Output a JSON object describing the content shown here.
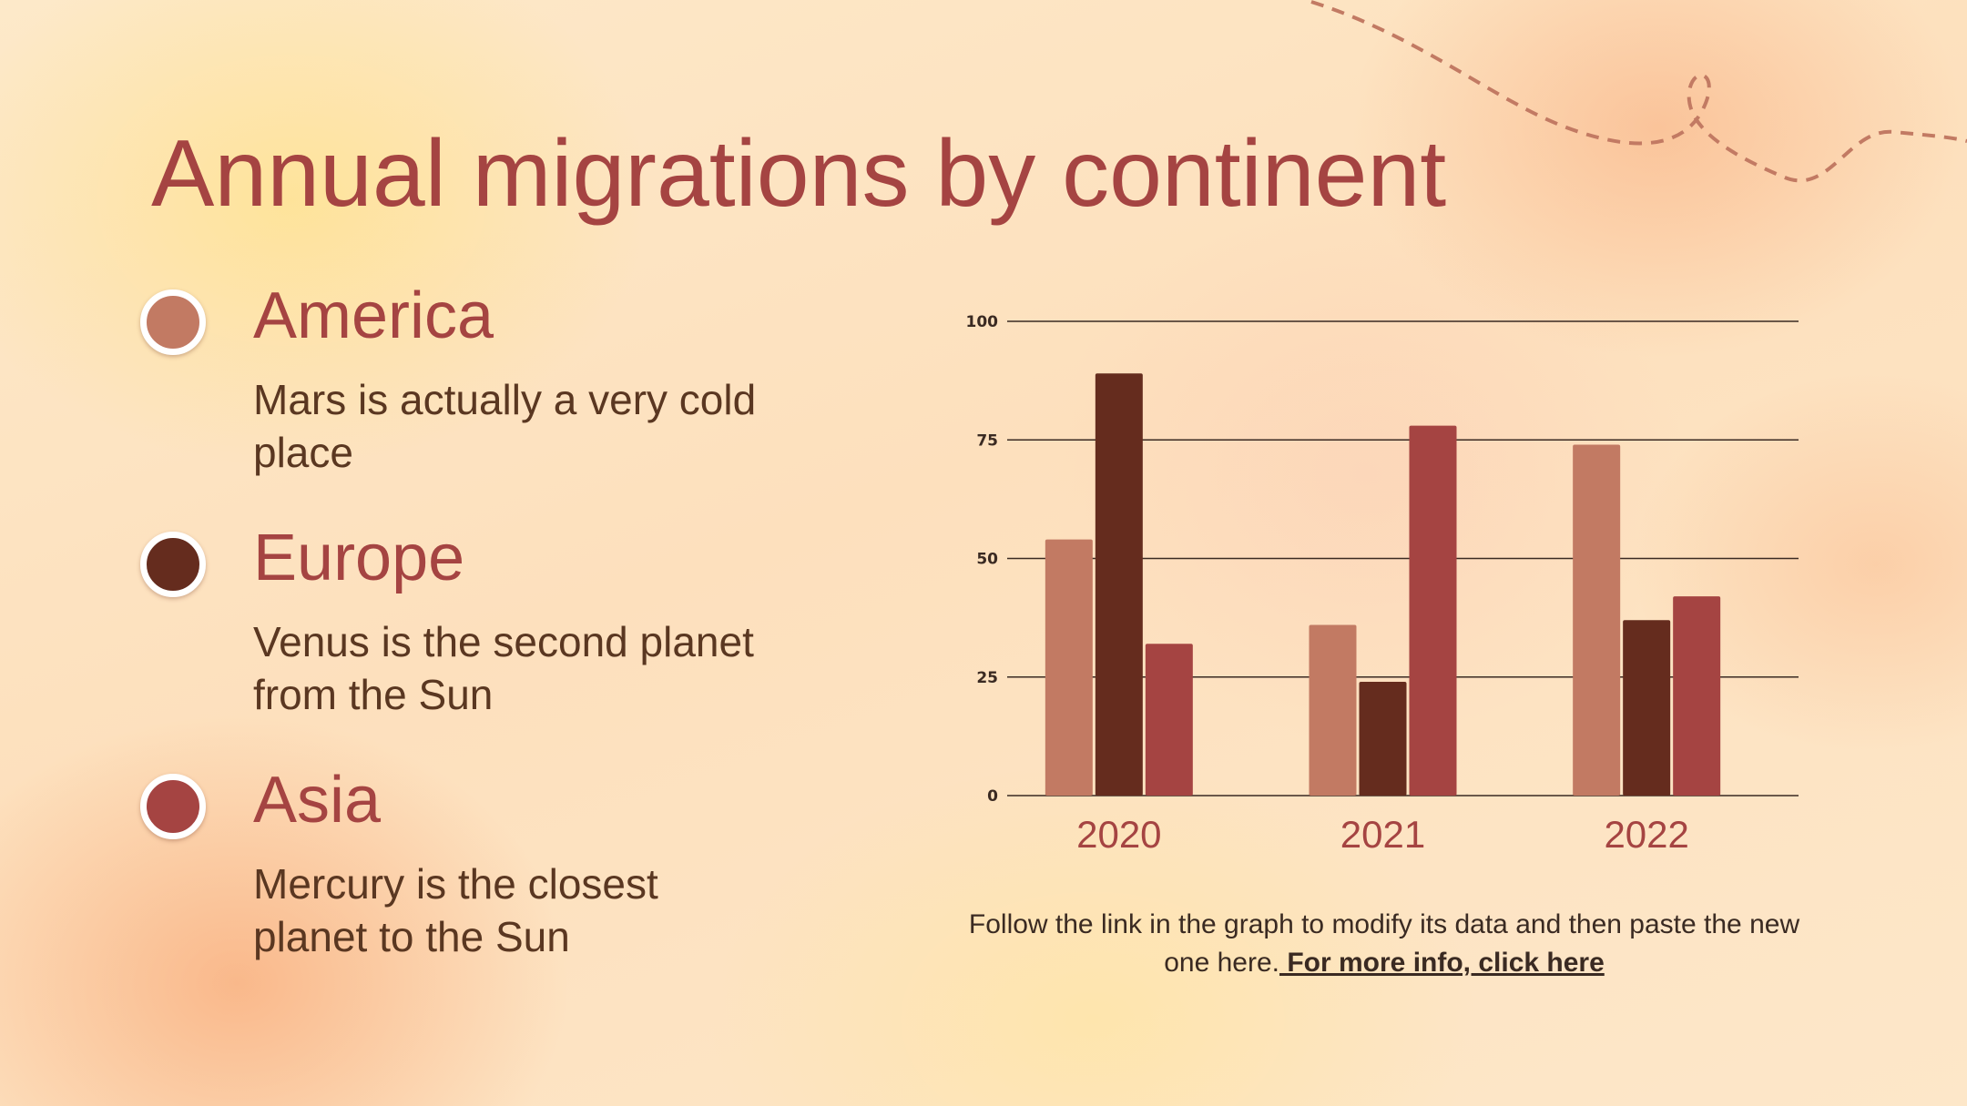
{
  "slide": {
    "title": "Annual migrations by continent",
    "legend": [
      {
        "name": "America",
        "description": "Mars is actually a very cold place",
        "color": "#c27a63"
      },
      {
        "name": "Europe",
        "description": "Venus is the second planet from the Sun",
        "color": "#652c1e"
      },
      {
        "name": "Asia",
        "description": "Mercury is the closest planet to the Sun",
        "color": "#a54442"
      }
    ],
    "note": {
      "text": "Follow the link in the graph to modify its data and then paste the new one here.",
      "link_label": " For more info, click here"
    }
  },
  "chart_data": {
    "type": "bar",
    "categories": [
      "2020",
      "2021",
      "2022"
    ],
    "series": [
      {
        "name": "America",
        "values": [
          54,
          36,
          74
        ],
        "color": "#c27a63"
      },
      {
        "name": "Europe",
        "values": [
          89,
          24,
          37
        ],
        "color": "#652c1e"
      },
      {
        "name": "Asia",
        "values": [
          32,
          78,
          42
        ],
        "color": "#a54442"
      }
    ],
    "ylim": [
      0,
      100
    ],
    "yticks": [
      0,
      25,
      50,
      75,
      100
    ],
    "grid": true,
    "title": "",
    "xlabel": "",
    "ylabel": ""
  }
}
